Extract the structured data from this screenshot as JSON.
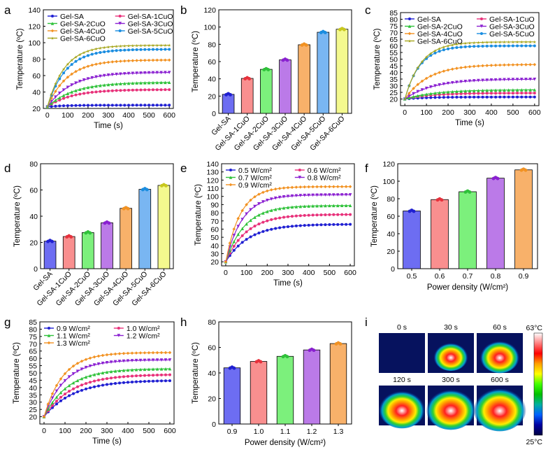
{
  "chart_data": [
    {
      "panel": "a",
      "type": "line",
      "xlabel": "Time (s)",
      "ylabel": "Temperature (ºC)",
      "xlim": [
        -20,
        620
      ],
      "ylim": [
        20,
        140
      ],
      "xticks": [
        0,
        100,
        200,
        300,
        400,
        500,
        600
      ],
      "yticks": [
        20,
        40,
        60,
        80,
        100,
        120,
        140
      ],
      "legend_columns": 2,
      "series": [
        {
          "name": "Gel-SA",
          "color": "#1f1fd2",
          "marker": "circle",
          "start": 22,
          "plateau": 24,
          "tau": 80
        },
        {
          "name": "Gel-SA-1CuO",
          "color": "#e8317a",
          "marker": "circle",
          "start": 22,
          "plateau": 43,
          "tau": 120
        },
        {
          "name": "Gel-SA-2CuO",
          "color": "#2fc23a",
          "marker": "triangle",
          "start": 22,
          "plateau": 52,
          "tau": 130
        },
        {
          "name": "Gel-SA-3CuO",
          "color": "#8a1fd1",
          "marker": "triangle-down",
          "start": 22,
          "plateau": 64,
          "tau": 120
        },
        {
          "name": "Gel-SA-4CuO",
          "color": "#f29222",
          "marker": "diamond",
          "start": 22,
          "plateau": 79,
          "tau": 100
        },
        {
          "name": "Gel-SA-5CuO",
          "color": "#1a8de0",
          "marker": "circle",
          "start": 22,
          "plateau": 92,
          "tau": 90
        },
        {
          "name": "Gel-SA-6CuO",
          "color": "#a6a61e",
          "marker": "star",
          "start": 22,
          "plateau": 97,
          "tau": 85
        }
      ]
    },
    {
      "panel": "b",
      "type": "bar",
      "ylabel": "Temperature (ºC)",
      "ylim": [
        0,
        120
      ],
      "yticks": [
        0,
        20,
        40,
        60,
        80,
        100,
        120
      ],
      "categories": [
        "Gel-SA",
        "Gel-SA-1CuO",
        "Gel-SA-2CuO",
        "Gel-SA-3CuO",
        "Gel-SA-4CuO",
        "Gel-SA-5CuO",
        "Gel-SA-6CuO"
      ],
      "values": [
        22,
        40.5,
        51,
        62,
        79.5,
        94,
        97.5
      ],
      "colors": [
        "#6d6df2",
        "#f98f8f",
        "#7cf07c",
        "#bb7ae8",
        "#f8b16a",
        "#79b6f2",
        "#f4f98e"
      ],
      "dot_colors": [
        "#1f1fd2",
        "#e8313c",
        "#2fc23a",
        "#8a1fd1",
        "#f29222",
        "#1a8de0",
        "#c8c81e"
      ]
    },
    {
      "panel": "c",
      "type": "line",
      "xlabel": "Time (s)",
      "ylabel": "Temperature (ºC)",
      "xlim": [
        -20,
        620
      ],
      "ylim": [
        15,
        85
      ],
      "xticks": [
        0,
        100,
        200,
        300,
        400,
        500,
        600
      ],
      "yticks": [
        20,
        25,
        30,
        35,
        40,
        45,
        50,
        55,
        60,
        65,
        70,
        75,
        80,
        85
      ],
      "legend_columns": 2,
      "series": [
        {
          "name": "Gel-SA",
          "color": "#1f1fd2",
          "marker": "circle",
          "start": 20,
          "plateau": 21.5,
          "tau": 100
        },
        {
          "name": "Gel-SA-1CuO",
          "color": "#e8317a",
          "marker": "circle",
          "start": 20,
          "plateau": 24.5,
          "tau": 120
        },
        {
          "name": "Gel-SA-2CuO",
          "color": "#2fc23a",
          "marker": "triangle",
          "start": 20,
          "plateau": 27,
          "tau": 140
        },
        {
          "name": "Gel-SA-3CuO",
          "color": "#8a1fd1",
          "marker": "triangle-down",
          "start": 20,
          "plateau": 35,
          "tau": 130
        },
        {
          "name": "Gel-SA-4CuO",
          "color": "#f29222",
          "marker": "diamond",
          "start": 20,
          "plateau": 46,
          "tau": 110
        },
        {
          "name": "Gel-SA-5CuO",
          "color": "#1a8de0",
          "marker": "circle",
          "start": 20,
          "plateau": 60,
          "tau": 70
        },
        {
          "name": "Gel-SA-6CuO",
          "color": "#a6a61e",
          "marker": "star",
          "start": 20,
          "plateau": 63,
          "tau": 75
        }
      ]
    },
    {
      "panel": "d",
      "type": "bar",
      "ylabel": "Temperature (ºC)",
      "ylim": [
        0,
        80
      ],
      "yticks": [
        0,
        20,
        40,
        60,
        80
      ],
      "categories": [
        "Gel-SA",
        "Gel-SA-1CuO",
        "Gel-SA-2CuO",
        "Gel-SA-3CuO",
        "Gel-SA-4CuO",
        "Gel-SA-5CuO",
        "Gel-SA-6CuO"
      ],
      "values": [
        21,
        24.5,
        27.5,
        35,
        46,
        60.5,
        63.5
      ],
      "colors": [
        "#6d6df2",
        "#f98f8f",
        "#7cf07c",
        "#bb7ae8",
        "#f8b16a",
        "#79b6f2",
        "#f4f98e"
      ],
      "dot_colors": [
        "#1f1fd2",
        "#e8313c",
        "#2fc23a",
        "#8a1fd1",
        "#f29222",
        "#1a8de0",
        "#c8c81e"
      ]
    },
    {
      "panel": "e",
      "type": "line",
      "xlabel": "Time (s)",
      "ylabel": "Temperature (ºC)",
      "xlim": [
        -20,
        620
      ],
      "ylim": [
        15,
        140
      ],
      "xticks": [
        0,
        100,
        200,
        300,
        400,
        500,
        600
      ],
      "yticks": [
        20,
        30,
        40,
        50,
        60,
        70,
        80,
        90,
        100,
        110,
        120,
        130,
        140
      ],
      "legend_columns": 2,
      "series": [
        {
          "name": "0.5 W/cm²",
          "color": "#1f1fd2",
          "marker": "circle",
          "start": 20,
          "plateau": 66,
          "tau": 110
        },
        {
          "name": "0.6 W/cm²",
          "color": "#e8317a",
          "marker": "circle",
          "start": 20,
          "plateau": 78,
          "tau": 100
        },
        {
          "name": "0.7 W/cm²",
          "color": "#2fc23a",
          "marker": "triangle",
          "start": 20,
          "plateau": 89,
          "tau": 90
        },
        {
          "name": "0.8 W/cm²",
          "color": "#8a1fd1",
          "marker": "triangle-down",
          "start": 20,
          "plateau": 102,
          "tau": 80
        },
        {
          "name": "0.9 W/cm²",
          "color": "#f29222",
          "marker": "diamond",
          "start": 20,
          "plateau": 112,
          "tau": 70
        }
      ]
    },
    {
      "panel": "f",
      "type": "bar",
      "xlabel": "Power density (W/cm²)",
      "ylabel": "Temperature (ºC)",
      "ylim": [
        0,
        120
      ],
      "yticks": [
        0,
        20,
        40,
        60,
        80,
        100,
        120
      ],
      "categories": [
        "0.5",
        "0.6",
        "0.7",
        "0.8",
        "0.9"
      ],
      "values": [
        66,
        79,
        88,
        103.5,
        113
      ],
      "colors": [
        "#6d6df2",
        "#f98f8f",
        "#7cf07c",
        "#bb7ae8",
        "#f8b16a"
      ],
      "dot_colors": [
        "#1f1fd2",
        "#e8313c",
        "#2fc23a",
        "#8a1fd1",
        "#f29222"
      ]
    },
    {
      "panel": "g",
      "type": "line",
      "xlabel": "Time (s)",
      "ylabel": "Temperature (ºC)",
      "xlim": [
        -20,
        620
      ],
      "ylim": [
        15,
        85
      ],
      "xticks": [
        0,
        100,
        200,
        300,
        400,
        500,
        600
      ],
      "yticks": [
        20,
        25,
        30,
        35,
        40,
        45,
        50,
        55,
        60,
        65,
        70,
        75,
        80,
        85
      ],
      "legend_columns": 2,
      "series": [
        {
          "name": "0.9 W/cm²",
          "color": "#1f1fd2",
          "marker": "circle",
          "start": 20,
          "plateau": 45,
          "tau": 140
        },
        {
          "name": "1.0 W/cm²",
          "color": "#e8317a",
          "marker": "circle",
          "start": 20,
          "plateau": 49,
          "tau": 130
        },
        {
          "name": "1.1 W/cm²",
          "color": "#2fc23a",
          "marker": "triangle",
          "start": 20,
          "plateau": 53,
          "tau": 115
        },
        {
          "name": "1.2 W/cm²",
          "color": "#8a1fd1",
          "marker": "triangle-down",
          "start": 20,
          "plateau": 59,
          "tau": 100
        },
        {
          "name": "1.3 W/cm²",
          "color": "#f29222",
          "marker": "diamond",
          "start": 20,
          "plateau": 64,
          "tau": 90
        }
      ]
    },
    {
      "panel": "h",
      "type": "bar",
      "xlabel": "Power density (W/cm²)",
      "ylabel": "Temperature (ºC)",
      "ylim": [
        0,
        80
      ],
      "yticks": [
        0,
        20,
        40,
        60,
        80
      ],
      "categories": [
        "0.9",
        "1.0",
        "1.1",
        "1.2",
        "1.3"
      ],
      "values": [
        44,
        49,
        53,
        58,
        63
      ],
      "colors": [
        "#6d6df2",
        "#f98f8f",
        "#7cf07c",
        "#bb7ae8",
        "#f8b16a"
      ],
      "dot_colors": [
        "#1f1fd2",
        "#e8313c",
        "#2fc23a",
        "#8a1fd1",
        "#f29222"
      ]
    }
  ],
  "thermal_images": {
    "panel": "i",
    "frames": [
      {
        "label": "0 s",
        "hotspot": 0
      },
      {
        "label": "30 s",
        "hotspot": 0.45
      },
      {
        "label": "60 s",
        "hotspot": 0.6
      },
      {
        "label": "120 s",
        "hotspot": 0.8
      },
      {
        "label": "300 s",
        "hotspot": 0.9
      },
      {
        "label": "600 s",
        "hotspot": 1.0
      }
    ],
    "colorbar": {
      "max_label": "63°C",
      "min_label": "25°C",
      "colors": [
        "#ffffff",
        "#ff8080",
        "#ff0000",
        "#ffa000",
        "#ffff00",
        "#40ff00",
        "#00c000",
        "#00b0a0",
        "#0060ff",
        "#0000a0",
        "#000040"
      ]
    }
  }
}
